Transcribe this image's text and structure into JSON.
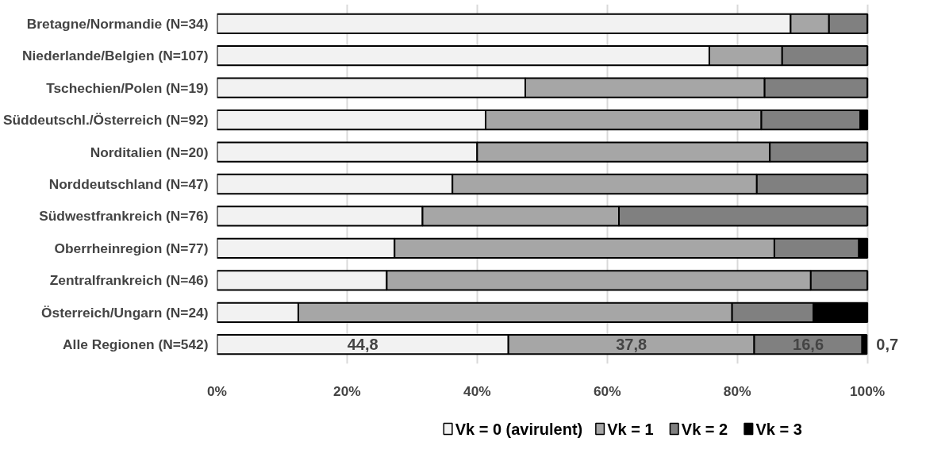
{
  "chart_data": {
    "type": "bar",
    "orientation": "horizontal",
    "stacked": true,
    "categories": [
      "Bretagne/Normandie (N=34)",
      "Niederlande/Belgien (N=107)",
      "Tschechien/Polen (N=19)",
      "Süddeutschl./Österreich (N=92)",
      "Norditalien (N=20)",
      "Norddeutschland (N=47)",
      "Südwestfrankreich (N=76)",
      "Oberrheinregion (N=77)",
      "Zentralfrankreich (N=46)",
      "Österreich/Ungarn (N=24)",
      "Alle Regionen (N=542)"
    ],
    "series": [
      {
        "name": "Vk = 0 (avirulent)",
        "color": "#f2f2f2",
        "values": [
          88.2,
          75.7,
          47.4,
          41.3,
          40,
          36.2,
          31.6,
          27.3,
          26.1,
          12.5,
          44.8
        ],
        "value_labels": [
          null,
          null,
          null,
          null,
          null,
          null,
          null,
          null,
          null,
          null,
          "44,8"
        ]
      },
      {
        "name": "Vk = 1",
        "color": "#a6a6a6",
        "values": [
          5.9,
          11.2,
          36.8,
          42.4,
          45,
          46.8,
          30.2,
          58.4,
          65.2,
          66.7,
          37.8
        ],
        "value_labels": [
          null,
          null,
          null,
          null,
          null,
          null,
          null,
          null,
          null,
          null,
          "37,8"
        ]
      },
      {
        "name": "Vk = 2",
        "color": "#808080",
        "values": [
          5.9,
          13.1,
          15.8,
          15.2,
          15,
          17.0,
          38.2,
          13.0,
          8.7,
          12.5,
          16.6
        ],
        "value_labels": [
          null,
          null,
          null,
          null,
          null,
          null,
          null,
          null,
          null,
          null,
          "16,6"
        ]
      },
      {
        "name": "Vk = 3",
        "color": "#000000",
        "values": [
          0,
          0,
          0,
          1.1,
          0,
          0,
          0,
          1.3,
          0,
          8.3,
          0.7
        ],
        "value_labels": [
          null,
          null,
          null,
          null,
          null,
          null,
          null,
          null,
          null,
          null,
          "0,7"
        ]
      }
    ],
    "xlim": [
      0,
      100
    ],
    "xticks": [
      {
        "value": 0,
        "label": "0%"
      },
      {
        "value": 20,
        "label": "20%"
      },
      {
        "value": 40,
        "label": "40%"
      },
      {
        "value": 60,
        "label": "60%"
      },
      {
        "value": 80,
        "label": "80%"
      },
      {
        "value": 100,
        "label": "100%"
      }
    ],
    "grid": "x",
    "legend": "bottom"
  }
}
